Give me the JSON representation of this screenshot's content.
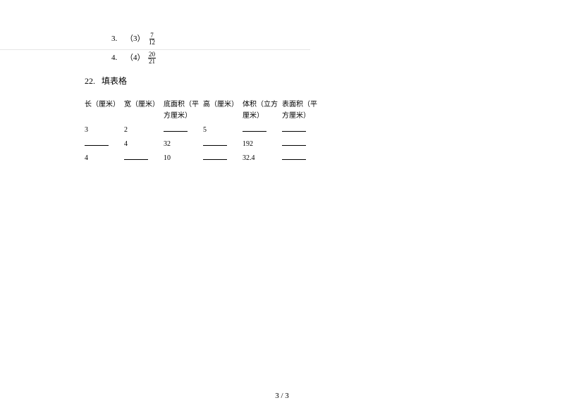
{
  "answers": {
    "item3": {
      "num": "3.",
      "paren": "（3）",
      "fracTop": "7",
      "fracBot": "12"
    },
    "item4": {
      "num": "4.",
      "paren": "（4）",
      "fracTop": "20",
      "fracBot": "21"
    }
  },
  "question22": {
    "number": "22.",
    "title": "填表格"
  },
  "table": {
    "headers": [
      "长（厘米）",
      "宽（厘米）",
      "底面积（平方厘米）",
      "高（厘米）",
      "体积（立方厘米）",
      "表面积（平方厘米）"
    ],
    "rows": [
      [
        "3",
        "2",
        "",
        "5",
        "",
        ""
      ],
      [
        "",
        "4",
        "32",
        "",
        "192",
        ""
      ],
      [
        "4",
        "",
        "10",
        "",
        "32.4",
        ""
      ]
    ]
  },
  "footer": "3 / 3"
}
